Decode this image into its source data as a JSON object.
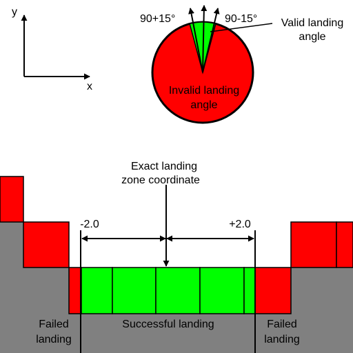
{
  "axes": {
    "y_label": "y",
    "x_label": "x"
  },
  "angle_diagram": {
    "left_angle_label": "90+15°",
    "right_angle_label": "90-15°",
    "valid_label_line1": "Valid landing",
    "valid_label_line2": "angle",
    "invalid_label_line1": "Invalid landing",
    "invalid_label_line2": "angle",
    "valid_sector_deg": [
      75,
      105
    ]
  },
  "landing_zone": {
    "exact_label_line1": "Exact landing",
    "exact_label_line2": "zone coordinate",
    "minus_label": "-2.0",
    "plus_label": "+2.0",
    "success_label": "Successful landing",
    "failed_left_line1": "Failed",
    "failed_left_line2": "landing",
    "failed_right_line1": "Failed",
    "failed_right_line2": "landing"
  },
  "colors": {
    "valid": "#00ff00",
    "invalid": "#ff0000",
    "ground": "#808080",
    "outline": "#000000"
  }
}
